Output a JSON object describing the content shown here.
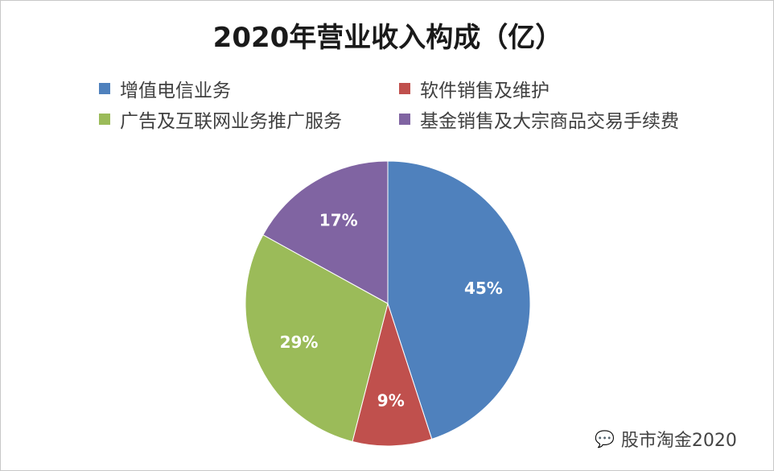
{
  "chart_data": {
    "type": "pie",
    "title": "2020年营业收入构成（亿）",
    "legend_position": "top",
    "slices": [
      {
        "label": "增值电信业务",
        "value": 45,
        "data_label": "45%",
        "color": "#4F81BD"
      },
      {
        "label": "软件销售及维护",
        "value": 9,
        "data_label": "9%",
        "color": "#C0504D"
      },
      {
        "label": "广告及互联网业务推广服务",
        "value": 29,
        "data_label": "29%",
        "color": "#9BBB59"
      },
      {
        "label": "基金销售及大宗商品交易手续费",
        "value": 17,
        "data_label": "17%",
        "color": "#8064A2"
      }
    ]
  },
  "watermark": {
    "text": "股市淘金2020",
    "icon": "wechat-icon"
  }
}
